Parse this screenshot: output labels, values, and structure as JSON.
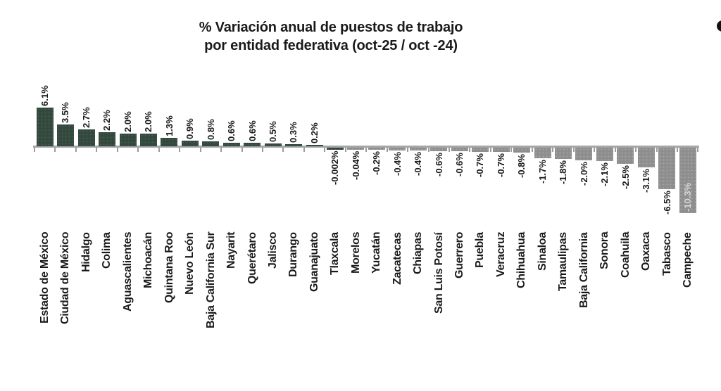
{
  "title": {
    "line1": "% Variación anual de puestos de trabajo",
    "line2": "por entidad federativa (oct-25 / oct -24)"
  },
  "colors": {
    "positive_bar": "#33493d",
    "negative_bar": "#8e8e8e",
    "axis": "#a6a6a6",
    "label_text": "#1a1a1a",
    "inside_label_text": "#d6d6d6",
    "bullet": "#111111"
  },
  "chart_data": {
    "type": "bar",
    "title": "% Variación anual de puestos de trabajo por entidad federativa (oct-25 / oct -24)",
    "xlabel": "",
    "ylabel": "",
    "grid": false,
    "legend": false,
    "value_unit": "%",
    "ylim": [
      -10.3,
      6.1
    ],
    "orientation": "vertical-diverging",
    "categories": [
      "Estado de México",
      "Ciudad de México",
      "Hidalgo",
      "Colima",
      "Aguascalientes",
      "Michoacán",
      "Quintana Roo",
      "Nuevo León",
      "Baja California Sur",
      "Nayarit",
      "Querétaro",
      "Jalisco",
      "Durango",
      "Guanajuato",
      "Tlaxcala",
      "Morelos",
      "Yucatán",
      "Zacatecas",
      "Chiapas",
      "San Luis Potosí",
      "Guerrero",
      "Puebla",
      "Veracruz",
      "Chihuahua",
      "Sinaloa",
      "Tamaulipas",
      "Baja California",
      "Sonora",
      "Coahuila",
      "Oaxaca",
      "Tabasco",
      "Campeche"
    ],
    "bars": [
      {
        "name": "Estado de México",
        "value": 6.1,
        "label": "6.1%"
      },
      {
        "name": "Ciudad de México",
        "value": 3.5,
        "label": "3.5%"
      },
      {
        "name": "Hidalgo",
        "value": 2.7,
        "label": "2.7%"
      },
      {
        "name": "Colima",
        "value": 2.2,
        "label": "2.2%"
      },
      {
        "name": "Aguascalientes",
        "value": 2.0,
        "label": "2.0%"
      },
      {
        "name": "Michoacán",
        "value": 2.0,
        "label": "2.0%"
      },
      {
        "name": "Quintana Roo",
        "value": 1.3,
        "label": "1.3%"
      },
      {
        "name": "Nuevo León",
        "value": 0.9,
        "label": "0.9%"
      },
      {
        "name": "Baja California Sur",
        "value": 0.8,
        "label": "0.8%"
      },
      {
        "name": "Nayarit",
        "value": 0.6,
        "label": "0.6%"
      },
      {
        "name": "Querétaro",
        "value": 0.6,
        "label": "0.6%"
      },
      {
        "name": "Jalisco",
        "value": 0.5,
        "label": "0.5%"
      },
      {
        "name": "Durango",
        "value": 0.3,
        "label": "0.3%"
      },
      {
        "name": "Guanajuato",
        "value": 0.2,
        "label": "0.2%"
      },
      {
        "name": "Tlaxcala",
        "value": -0.002,
        "label": "-0.002%",
        "color": "green"
      },
      {
        "name": "Morelos",
        "value": -0.04,
        "label": "-0.04%"
      },
      {
        "name": "Yucatán",
        "value": -0.2,
        "label": "-0.2%"
      },
      {
        "name": "Zacatecas",
        "value": -0.4,
        "label": "-0.4%"
      },
      {
        "name": "Chiapas",
        "value": -0.4,
        "label": "-0.4%"
      },
      {
        "name": "San Luis Potosí",
        "value": -0.6,
        "label": "-0.6%"
      },
      {
        "name": "Guerrero",
        "value": -0.6,
        "label": "-0.6%"
      },
      {
        "name": "Puebla",
        "value": -0.7,
        "label": "-0.7%"
      },
      {
        "name": "Veracruz",
        "value": -0.7,
        "label": "-0.7%"
      },
      {
        "name": "Chihuahua",
        "value": -0.8,
        "label": "-0.8%"
      },
      {
        "name": "Sinaloa",
        "value": -1.7,
        "label": "-1.7%"
      },
      {
        "name": "Tamaulipas",
        "value": -1.8,
        "label": "-1.8%"
      },
      {
        "name": "Baja California",
        "value": -2.0,
        "label": "-2.0%"
      },
      {
        "name": "Sonora",
        "value": -2.1,
        "label": "-2.1%"
      },
      {
        "name": "Coahuila",
        "value": -2.5,
        "label": "-2.5%"
      },
      {
        "name": "Oaxaca",
        "value": -3.1,
        "label": "-3.1%"
      },
      {
        "name": "Tabasco",
        "value": -6.5,
        "label": "-6.5%"
      },
      {
        "name": "Campeche",
        "value": -10.3,
        "label": "-10.3%",
        "label_inside": true
      }
    ]
  }
}
